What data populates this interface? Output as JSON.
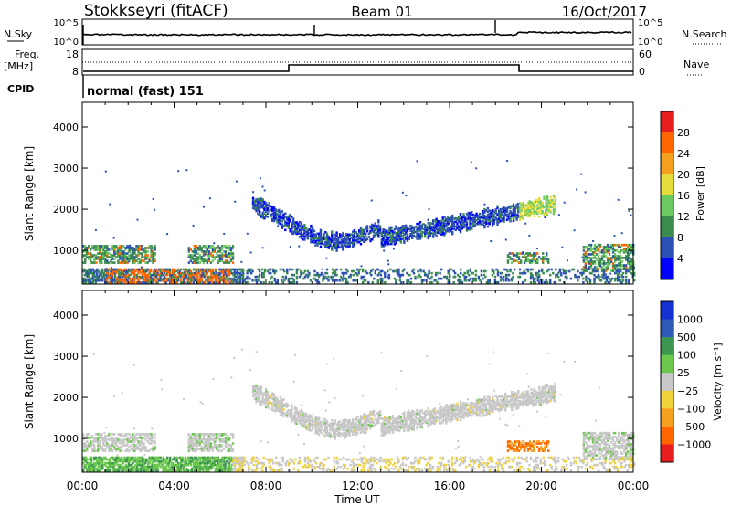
{
  "header": {
    "station": "Stokkseyri (fitACF)",
    "beam": "Beam 01",
    "date": "16/Oct/2017"
  },
  "top_panels": {
    "nsky": {
      "label": "N.Sky",
      "ticks": [
        "10^5",
        "10^0"
      ]
    },
    "nsearch": {
      "label": "N.Search",
      "ticks": [
        "10^5",
        "10^0"
      ]
    },
    "freq": {
      "label_line1": "Freq.",
      "label_line2": "[MHz]",
      "ticks": [
        "18",
        "8"
      ]
    },
    "nave": {
      "label": "Nave",
      "ticks": [
        "60",
        "0"
      ]
    },
    "cpid": {
      "label": "CPID",
      "value": "normal (fast) 151"
    }
  },
  "chart_data": [
    {
      "type": "heatmap",
      "panel": "power",
      "ylabel": "Slant Range [km]",
      "yticks": [
        1000,
        2000,
        3000,
        4000
      ],
      "ylim": [
        180,
        4600
      ],
      "colorbar": {
        "label": "Power [dB]",
        "ticks": [
          "28",
          "24",
          "20",
          "16",
          "12",
          "8",
          "4"
        ]
      },
      "colors": [
        "#0000ff",
        "#2c50b4",
        "#3c8c50",
        "#6cc860",
        "#e6dc3c",
        "#f5a020",
        "#ff6600",
        "#e61e1e"
      ]
    },
    {
      "type": "heatmap",
      "panel": "velocity",
      "ylabel": "Slant Range [km]",
      "yticks": [
        1000,
        2000,
        3000,
        4000
      ],
      "ylim": [
        180,
        4600
      ],
      "colorbar": {
        "label": "Velocity [m s⁻¹]",
        "ticks": [
          "1000",
          "500",
          "100",
          "25",
          "−25",
          "−100",
          "−500",
          "−1000"
        ]
      },
      "colors": [
        "#e61e1e",
        "#ff6600",
        "#f5a020",
        "#f0d23c",
        "#c8c8c8",
        "#6cc84c",
        "#3c9650",
        "#2c5ab4",
        "#1432d2"
      ]
    }
  ],
  "xaxis": {
    "label": "Time UT",
    "ticks": [
      "00:00",
      "04:00",
      "08:00",
      "12:00",
      "16:00",
      "20:00",
      "00:00"
    ]
  }
}
